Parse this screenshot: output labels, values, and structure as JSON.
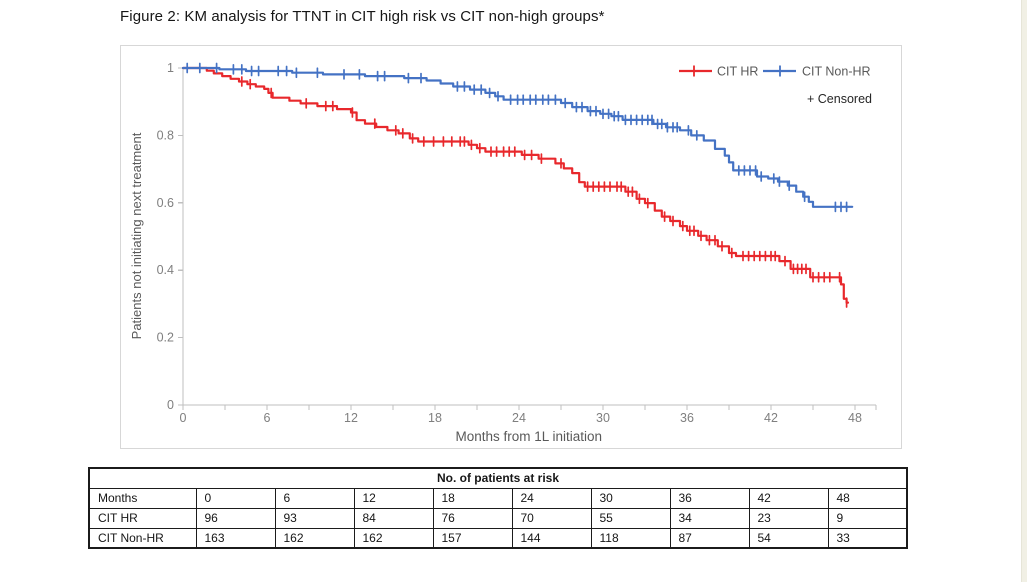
{
  "title": "Figure 2: KM analysis for TTNT in CIT high risk vs CIT non-high groups*",
  "chart_data": {
    "type": "line",
    "subtype": "kaplan-meier-step",
    "title": "",
    "xlabel": "Months from 1L initiation",
    "ylabel": "Patients not initiating next treatment",
    "xlim": [
      0,
      49.5
    ],
    "ylim": [
      0,
      1
    ],
    "x_major_ticks": [
      0,
      6,
      12,
      18,
      24,
      30,
      36,
      42,
      48
    ],
    "x_minor_tick_step": 3,
    "y_ticks": [
      0,
      0.2,
      0.4,
      0.6,
      0.8,
      1
    ],
    "y_tick_labels": [
      "0",
      "0.2",
      "0.4",
      "0.6",
      "0.8",
      "1"
    ],
    "grid": false,
    "legend_position": "top-right",
    "censored_note": "+ Censored",
    "series": [
      {
        "name": "CIT HR",
        "color": "#e8282c",
        "end_month": 47.5,
        "steps": [
          [
            0,
            1.0
          ],
          [
            1.7,
            0.992
          ],
          [
            2.2,
            0.984
          ],
          [
            2.8,
            0.976
          ],
          [
            3.4,
            0.968
          ],
          [
            4.0,
            0.96
          ],
          [
            4.6,
            0.952
          ],
          [
            5.2,
            0.945
          ],
          [
            5.8,
            0.938
          ],
          [
            6.1,
            0.926
          ],
          [
            6.4,
            0.912
          ],
          [
            7.6,
            0.903
          ],
          [
            8.4,
            0.895
          ],
          [
            9.6,
            0.887
          ],
          [
            11.0,
            0.878
          ],
          [
            12.0,
            0.868
          ],
          [
            12.4,
            0.845
          ],
          [
            13.0,
            0.835
          ],
          [
            13.8,
            0.825
          ],
          [
            14.6,
            0.815
          ],
          [
            15.4,
            0.806
          ],
          [
            16.2,
            0.791
          ],
          [
            16.8,
            0.782
          ],
          [
            20.4,
            0.772
          ],
          [
            21.0,
            0.762
          ],
          [
            21.6,
            0.752
          ],
          [
            24.2,
            0.742
          ],
          [
            25.4,
            0.731
          ],
          [
            26.6,
            0.717
          ],
          [
            27.2,
            0.702
          ],
          [
            27.8,
            0.688
          ],
          [
            28.3,
            0.661
          ],
          [
            28.7,
            0.648
          ],
          [
            31.6,
            0.633
          ],
          [
            32.4,
            0.612
          ],
          [
            33.0,
            0.599
          ],
          [
            33.7,
            0.577
          ],
          [
            34.2,
            0.559
          ],
          [
            34.8,
            0.546
          ],
          [
            35.5,
            0.531
          ],
          [
            36.0,
            0.517
          ],
          [
            36.8,
            0.502
          ],
          [
            37.4,
            0.489
          ],
          [
            38.2,
            0.471
          ],
          [
            39.0,
            0.451
          ],
          [
            39.5,
            0.442
          ],
          [
            42.6,
            0.427
          ],
          [
            43.4,
            0.404
          ],
          [
            44.8,
            0.379
          ],
          [
            47.0,
            0.358
          ],
          [
            47.2,
            0.315
          ],
          [
            47.4,
            0.304
          ]
        ],
        "censor_months": [
          4.2,
          4.8,
          6.3,
          8.8,
          10.2,
          10.7,
          12.1,
          13.7,
          15.2,
          15.7,
          16.4,
          17.2,
          17.9,
          18.6,
          19.2,
          19.8,
          20.1,
          20.6,
          21.2,
          22.0,
          22.4,
          22.9,
          23.3,
          23.7,
          24.4,
          24.9,
          25.6,
          27.0,
          28.9,
          29.3,
          29.7,
          30.1,
          30.5,
          31.0,
          31.3,
          31.8,
          32.1,
          32.6,
          33.2,
          34.4,
          35.0,
          35.7,
          36.2,
          36.5,
          37.0,
          37.6,
          38.0,
          38.5,
          39.2,
          40.0,
          40.4,
          40.8,
          41.2,
          41.6,
          42.0,
          42.3,
          43.0,
          43.6,
          43.9,
          44.2,
          44.5,
          45.0,
          45.4,
          45.8,
          46.2,
          46.9,
          47.4
        ]
      },
      {
        "name": "CIT Non-HR",
        "color": "#4472c4",
        "end_month": 47.8,
        "steps": [
          [
            0,
            1.0
          ],
          [
            2.6,
            0.996
          ],
          [
            4.5,
            0.991
          ],
          [
            7.8,
            0.986
          ],
          [
            10.0,
            0.981
          ],
          [
            13.0,
            0.976
          ],
          [
            15.8,
            0.97
          ],
          [
            17.4,
            0.963
          ],
          [
            18.4,
            0.954
          ],
          [
            19.3,
            0.945
          ],
          [
            20.5,
            0.936
          ],
          [
            21.6,
            0.926
          ],
          [
            22.3,
            0.916
          ],
          [
            22.9,
            0.906
          ],
          [
            27.0,
            0.896
          ],
          [
            27.8,
            0.884
          ],
          [
            28.9,
            0.872
          ],
          [
            29.8,
            0.864
          ],
          [
            30.6,
            0.857
          ],
          [
            31.4,
            0.846
          ],
          [
            33.6,
            0.834
          ],
          [
            34.5,
            0.824
          ],
          [
            35.5,
            0.815
          ],
          [
            36.3,
            0.8
          ],
          [
            37.2,
            0.785
          ],
          [
            38.0,
            0.76
          ],
          [
            38.7,
            0.74
          ],
          [
            39.0,
            0.72
          ],
          [
            39.3,
            0.696
          ],
          [
            41.0,
            0.678
          ],
          [
            41.8,
            0.672
          ],
          [
            42.5,
            0.663
          ],
          [
            43.2,
            0.651
          ],
          [
            43.8,
            0.633
          ],
          [
            44.3,
            0.618
          ],
          [
            44.7,
            0.603
          ],
          [
            45.0,
            0.588
          ]
        ],
        "censor_months": [
          0.3,
          1.2,
          2.4,
          3.6,
          4.2,
          4.9,
          5.4,
          6.8,
          7.4,
          8.1,
          9.6,
          11.5,
          12.6,
          13.9,
          14.4,
          16.1,
          17.0,
          19.6,
          20.1,
          20.8,
          21.3,
          21.9,
          22.5,
          23.4,
          23.9,
          24.3,
          24.8,
          25.2,
          25.7,
          26.1,
          26.6,
          27.3,
          28.1,
          28.5,
          29.1,
          29.5,
          30.0,
          30.4,
          30.8,
          31.1,
          31.6,
          32.0,
          32.4,
          32.8,
          33.2,
          33.5,
          33.9,
          34.2,
          34.6,
          35.0,
          35.3,
          36.1,
          36.7,
          39.7,
          40.1,
          40.5,
          40.9,
          41.3,
          42.2,
          42.6,
          43.3,
          44.4,
          46.6,
          47.0,
          47.4
        ]
      }
    ]
  },
  "risk_table": {
    "title": "No. of patients at risk",
    "columns": [
      "Months",
      "0",
      "6",
      "12",
      "18",
      "24",
      "30",
      "36",
      "42",
      "48"
    ],
    "rows": [
      {
        "label": "CIT HR",
        "values": [
          "96",
          "93",
          "84",
          "76",
          "70",
          "55",
          "34",
          "23",
          "9"
        ]
      },
      {
        "label": "CIT Non-HR",
        "values": [
          "163",
          "162",
          "162",
          "157",
          "144",
          "118",
          "87",
          "54",
          "33"
        ]
      }
    ]
  },
  "colors": {
    "cit_hr": "#e8282c",
    "cit_non_hr": "#4472c4",
    "axis_line": "#bfbfbf",
    "tick_label": "#7f7f7f",
    "axis_title": "#595959",
    "legend_text": "#595959",
    "censored_note_text": "#262626",
    "table_border": "#1b1b1b"
  }
}
